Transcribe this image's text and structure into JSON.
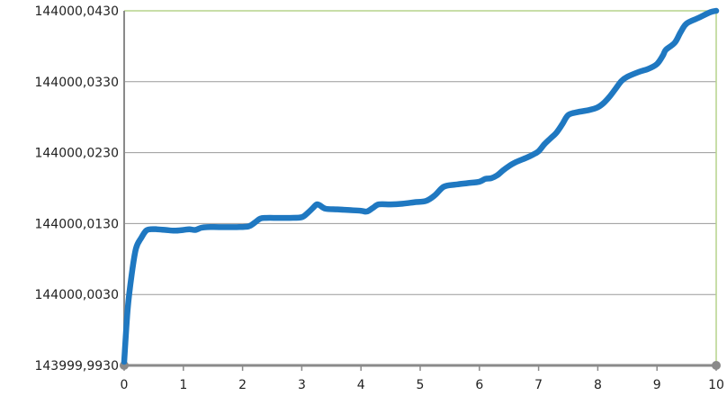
{
  "chart_data": {
    "type": "line",
    "title": "",
    "xlabel": "",
    "ylabel": "",
    "xlim": [
      0,
      10
    ],
    "ylim": [
      143999.993,
      144000.043
    ],
    "grid": true,
    "x_ticks": [
      {
        "value": 0,
        "label": "0"
      },
      {
        "value": 1,
        "label": "1"
      },
      {
        "value": 2,
        "label": "2"
      },
      {
        "value": 3,
        "label": "3"
      },
      {
        "value": 4,
        "label": "4"
      },
      {
        "value": 5,
        "label": "5"
      },
      {
        "value": 6,
        "label": "6"
      },
      {
        "value": 7,
        "label": "7"
      },
      {
        "value": 8,
        "label": "8"
      },
      {
        "value": 9,
        "label": "9"
      },
      {
        "value": 10,
        "label": "10"
      }
    ],
    "y_ticks": [
      {
        "value": 143999.993,
        "label": "143999,9930"
      },
      {
        "value": 144000.003,
        "label": "144000,0030"
      },
      {
        "value": 144000.013,
        "label": "144000,0130"
      },
      {
        "value": 144000.023,
        "label": "144000,0230"
      },
      {
        "value": 144000.033,
        "label": "144000,0330"
      },
      {
        "value": 144000.043,
        "label": "144000,0430"
      }
    ],
    "series": [
      {
        "color": "#1f78c1",
        "x": [
          0,
          0.06,
          0.13,
          0.2,
          0.29,
          0.37,
          0.45,
          0.55,
          0.7,
          0.85,
          1.0,
          1.1,
          1.2,
          1.3,
          1.4,
          1.6,
          1.9,
          2.1,
          2.2,
          2.3,
          2.4,
          2.6,
          2.8,
          3.0,
          3.1,
          3.2,
          3.25,
          3.3,
          3.4,
          3.6,
          3.8,
          4.0,
          4.1,
          4.2,
          4.3,
          4.5,
          4.7,
          4.9,
          5.1,
          5.25,
          5.4,
          5.6,
          5.8,
          6.0,
          6.1,
          6.2,
          6.3,
          6.4,
          6.5,
          6.6,
          6.8,
          6.9,
          7.0,
          7.1,
          7.2,
          7.3,
          7.4,
          7.5,
          7.65,
          7.85,
          8.0,
          8.1,
          8.2,
          8.3,
          8.4,
          8.5,
          8.7,
          8.85,
          9.0,
          9.1,
          9.15,
          9.3,
          9.4,
          9.5,
          9.7,
          9.9,
          10.0
        ],
        "y": [
          143999.9935,
          144000.001,
          144000.006,
          144000.0095,
          144000.011,
          144000.012,
          144000.0122,
          144000.0122,
          144000.0121,
          144000.012,
          144000.0121,
          144000.0122,
          144000.0121,
          144000.0124,
          144000.0125,
          144000.0125,
          144000.0125,
          144000.0126,
          144000.0131,
          144000.0137,
          144000.0138,
          144000.0138,
          144000.0138,
          144000.0139,
          144000.0145,
          144000.0153,
          144000.0157,
          144000.0156,
          144000.0151,
          144000.015,
          144000.0149,
          144000.0148,
          144000.0147,
          144000.0152,
          144000.0157,
          144000.0157,
          144000.0158,
          144000.016,
          144000.0162,
          144000.017,
          144000.0182,
          144000.0185,
          144000.0187,
          144000.0189,
          144000.0193,
          144000.0194,
          144000.0198,
          144000.0205,
          144000.0211,
          144000.0216,
          144000.0223,
          144000.0227,
          144000.0232,
          144000.0242,
          144000.025,
          144000.0258,
          144000.027,
          144000.0283,
          144000.0287,
          144000.029,
          144000.0294,
          144000.03,
          144000.0309,
          144000.032,
          144000.0331,
          144000.0337,
          144000.0344,
          144000.0348,
          144000.0355,
          144000.0367,
          144000.0375,
          144000.0385,
          144000.04,
          144000.0412,
          144000.042,
          144000.0428,
          144000.043
        ]
      }
    ]
  }
}
